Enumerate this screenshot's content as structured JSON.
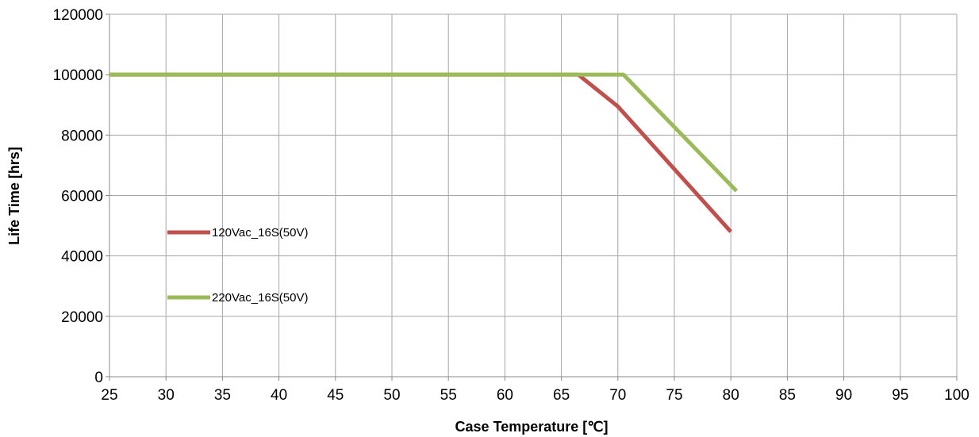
{
  "chart_data": {
    "type": "line",
    "title": "",
    "xlabel": "Case Temperature [℃]",
    "ylabel": "Life Time [hrs]",
    "xlim": [
      25,
      100
    ],
    "ylim": [
      0,
      120000
    ],
    "x_ticks": [
      25,
      30,
      35,
      40,
      45,
      50,
      55,
      60,
      65,
      70,
      75,
      80,
      85,
      90,
      95,
      100
    ],
    "y_ticks": [
      0,
      20000,
      40000,
      60000,
      80000,
      100000,
      120000
    ],
    "grid": true,
    "legend_position": "inside-left",
    "series": [
      {
        "name": "120Vac_16S(50V)",
        "color": "#C0504D",
        "points": [
          [
            25,
            100000
          ],
          [
            66.5,
            100000
          ],
          [
            70,
            89500
          ],
          [
            80,
            48000
          ]
        ]
      },
      {
        "name": "220Vac_16S(50V)",
        "color": "#9BBB59",
        "points": [
          [
            25,
            100000
          ],
          [
            70.5,
            100000
          ],
          [
            80.5,
            61500
          ]
        ]
      }
    ]
  }
}
